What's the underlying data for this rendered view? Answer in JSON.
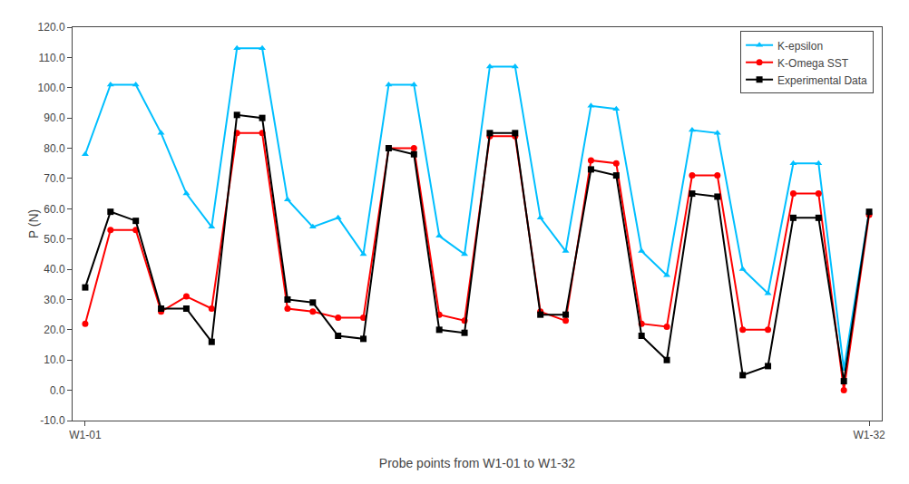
{
  "chart_data": {
    "type": "line",
    "x": [
      1,
      2,
      3,
      4,
      5,
      6,
      7,
      8,
      9,
      10,
      11,
      12,
      13,
      14,
      15,
      16,
      17,
      18,
      19,
      20,
      21,
      22,
      23,
      24,
      25,
      26,
      27,
      28,
      29,
      30,
      31,
      32
    ],
    "series": [
      {
        "name": "K-epsilon",
        "color": "#00BFFF",
        "marker": "triangle",
        "values": [
          78,
          101,
          101,
          85,
          65,
          54,
          113,
          113,
          63,
          54,
          57,
          45,
          101,
          101,
          51,
          45,
          107,
          107,
          57,
          46,
          94,
          93,
          46,
          38,
          86,
          85,
          40,
          32,
          75,
          75,
          7,
          59
        ]
      },
      {
        "name": "K-Omega SST",
        "color": "#FF0000",
        "marker": "circle",
        "values": [
          22,
          53,
          53,
          26,
          31,
          27,
          85,
          85,
          27,
          26,
          24,
          24,
          80,
          80,
          25,
          23,
          84,
          84,
          26,
          23,
          76,
          75,
          22,
          21,
          71,
          71,
          20,
          20,
          65,
          65,
          0,
          58
        ]
      },
      {
        "name": "Experimental Data",
        "color": "#000000",
        "marker": "square",
        "values": [
          34,
          59,
          56,
          27,
          27,
          16,
          91,
          90,
          30,
          29,
          18,
          17,
          80,
          78,
          20,
          19,
          85,
          85,
          25,
          25,
          73,
          71,
          18,
          10,
          65,
          64,
          5,
          8,
          57,
          57,
          3,
          59
        ]
      }
    ],
    "xlabel": "Probe points from W1-01 to W1-32",
    "ylabel": "P (N)",
    "xlim": [
      0.5,
      32.5
    ],
    "xticks": [
      {
        "value": 1,
        "label": "W1-01"
      },
      {
        "value": 32,
        "label": "W1-32"
      }
    ],
    "ylim": [
      -10,
      120
    ],
    "yticks": [
      {
        "value": -10,
        "label": "-10.0"
      },
      {
        "value": 0,
        "label": "0.0"
      },
      {
        "value": 10,
        "label": "10.0"
      },
      {
        "value": 20,
        "label": "20.0"
      },
      {
        "value": 30,
        "label": "30.0"
      },
      {
        "value": 40,
        "label": "40.0"
      },
      {
        "value": 50,
        "label": "50.0"
      },
      {
        "value": 60,
        "label": "60.0"
      },
      {
        "value": 70,
        "label": "70.0"
      },
      {
        "value": 80,
        "label": "80.0"
      },
      {
        "value": 90,
        "label": "90.0"
      },
      {
        "value": 100,
        "label": "100.0"
      },
      {
        "value": 110,
        "label": "110.0"
      },
      {
        "value": 120,
        "label": "120.0"
      }
    ],
    "grid": false,
    "legend": "upper right"
  }
}
